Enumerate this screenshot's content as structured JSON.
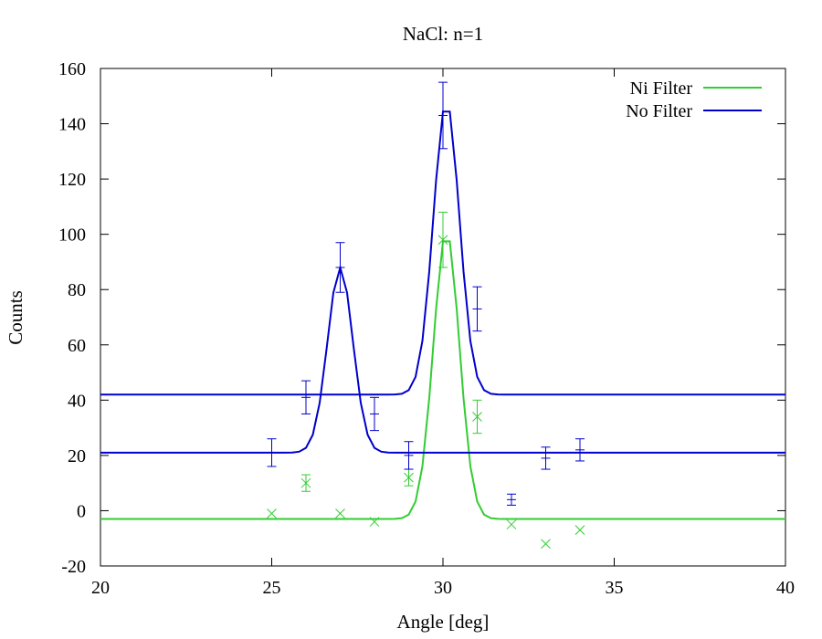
{
  "chart_data": {
    "type": "scatter",
    "title": "NaCl: n=1",
    "xlabel": "Angle [deg]",
    "ylabel": "Counts",
    "xlim": [
      20,
      40
    ],
    "ylim": [
      -20,
      160
    ],
    "x_ticks": [
      20,
      25,
      30,
      35,
      40
    ],
    "y_ticks": [
      -20,
      0,
      20,
      40,
      60,
      80,
      100,
      120,
      140,
      160
    ],
    "grid": false,
    "legend_position": "top-right",
    "series": [
      {
        "name": "Ni Filter",
        "color": "#33cc33",
        "marker": "x",
        "points": [
          {
            "x": 25,
            "y": -1,
            "err": 0
          },
          {
            "x": 26,
            "y": 10,
            "err": 3
          },
          {
            "x": 27,
            "y": -1,
            "err": 0
          },
          {
            "x": 28,
            "y": -4,
            "err": 0
          },
          {
            "x": 29,
            "y": 12,
            "err": 3
          },
          {
            "x": 30,
            "y": 98,
            "err": 10
          },
          {
            "x": 31,
            "y": 34,
            "err": 6
          },
          {
            "x": 32,
            "y": -5,
            "err": 0
          },
          {
            "x": 33,
            "y": -12,
            "err": 0
          },
          {
            "x": 34,
            "y": -7,
            "err": 0
          }
        ],
        "fits": [
          {
            "baseline": -3,
            "peaks": [
              {
                "center": 30.1,
                "amplitude": 104,
                "sigma": 0.38
              }
            ],
            "x_range": [
              20,
              40
            ]
          }
        ]
      },
      {
        "name": "No Filter",
        "color": "#0000cc",
        "marker": "+",
        "points": [
          {
            "x": 25,
            "y": 21,
            "err": 5
          },
          {
            "x": 26,
            "y": 41,
            "err": 6
          },
          {
            "x": 27,
            "y": 88,
            "err": 9
          },
          {
            "x": 28,
            "y": 35,
            "err": 6
          },
          {
            "x": 29,
            "y": 20,
            "err": 5
          },
          {
            "x": 30,
            "y": 143,
            "err": 12
          },
          {
            "x": 31,
            "y": 73,
            "err": 8
          },
          {
            "x": 32,
            "y": 4,
            "err": 2
          },
          {
            "x": 33,
            "y": 19,
            "err": 4
          },
          {
            "x": 34,
            "y": 22,
            "err": 4
          }
        ],
        "fits": [
          {
            "baseline": 21,
            "peaks": [
              {
                "center": 27.0,
                "amplitude": 67,
                "sigma": 0.37
              }
            ],
            "x_range": [
              20,
              40
            ]
          },
          {
            "baseline": 42,
            "peaks": [
              {
                "center": 30.1,
                "amplitude": 106,
                "sigma": 0.38
              }
            ],
            "x_range": [
              20,
              40
            ]
          }
        ]
      }
    ]
  }
}
